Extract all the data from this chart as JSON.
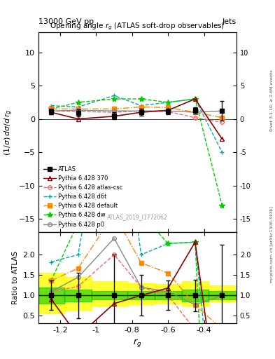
{
  "title_top_left": "13000 GeV pp",
  "title_top_right": "Jets",
  "plot_title": "Opening angle $r_g$ (ATLAS soft-drop observables)",
  "watermark": "ATLAS_2019_I1772062",
  "rivet_label": "Rivet 3.1.10; ≥ 2.6M events",
  "mcplots_label": "mcplots.cern.ch [arXiv:1306.3436]",
  "ylabel_main": "(1/σ) dσ/d r$_g$",
  "ylabel_ratio": "Ratio to ATLAS",
  "xlabel": "$r_g$",
  "xlim": [
    -1.32,
    -0.22
  ],
  "ylim_main": [
    -17,
    13
  ],
  "ylim_ratio": [
    0.32,
    2.55
  ],
  "yticks_main": [
    -15,
    -10,
    -5,
    0,
    5,
    10
  ],
  "yticks_ratio": [
    0.5,
    1.0,
    1.5,
    2.0
  ],
  "xticks": [
    -1.2,
    -1.0,
    -0.8,
    -0.6,
    -0.4
  ],
  "xticklabels": [
    "-1.2",
    "-1",
    "-0.8",
    "-0.6",
    "-0.4"
  ],
  "x_pts": [
    -1.25,
    -1.1,
    -0.9,
    -0.75,
    -0.6,
    -0.45,
    -0.3
  ],
  "atlas_y": [
    1.1,
    0.9,
    0.5,
    1.0,
    1.1,
    1.3,
    1.2
  ],
  "atlas_ye": [
    0.4,
    0.5,
    0.5,
    0.5,
    0.4,
    0.5,
    1.5
  ],
  "py370_y": [
    1.0,
    0.0,
    0.4,
    1.0,
    1.3,
    3.0,
    -3.0
  ],
  "pyatl_y": [
    1.2,
    1.1,
    1.0,
    1.2,
    1.1,
    0.2,
    -0.5
  ],
  "pyd6t_y": [
    2.0,
    1.8,
    3.5,
    2.0,
    2.5,
    3.0,
    -5.0
  ],
  "pydef_y": [
    1.5,
    1.5,
    1.5,
    1.8,
    1.7,
    1.0,
    0.2
  ],
  "pydw_y": [
    1.5,
    2.5,
    3.0,
    3.0,
    2.5,
    3.0,
    -13.0
  ],
  "pyp0_y": [
    1.2,
    1.3,
    1.2,
    1.2,
    1.2,
    1.0,
    1.2
  ],
  "color_atlas": "#000000",
  "color_370": "#8b0000",
  "color_atl": "#ff6666",
  "color_d6t": "#00aaaa",
  "color_def": "#ff8800",
  "color_dw": "#00cc00",
  "color_p0": "#888888",
  "xbins": [
    -1.32,
    -1.175,
    -1.025,
    -0.825,
    -0.675,
    -0.525,
    -0.375,
    -0.22
  ],
  "green_lo": [
    0.8,
    0.85,
    0.9,
    0.9,
    0.9,
    0.85,
    0.9
  ],
  "green_hi": [
    1.2,
    1.15,
    1.1,
    1.1,
    1.1,
    1.15,
    1.1
  ],
  "yell_lo": [
    0.55,
    0.65,
    0.75,
    0.78,
    0.8,
    0.75,
    0.85
  ],
  "yell_hi": [
    1.55,
    1.45,
    1.35,
    1.3,
    1.28,
    1.35,
    1.25
  ]
}
